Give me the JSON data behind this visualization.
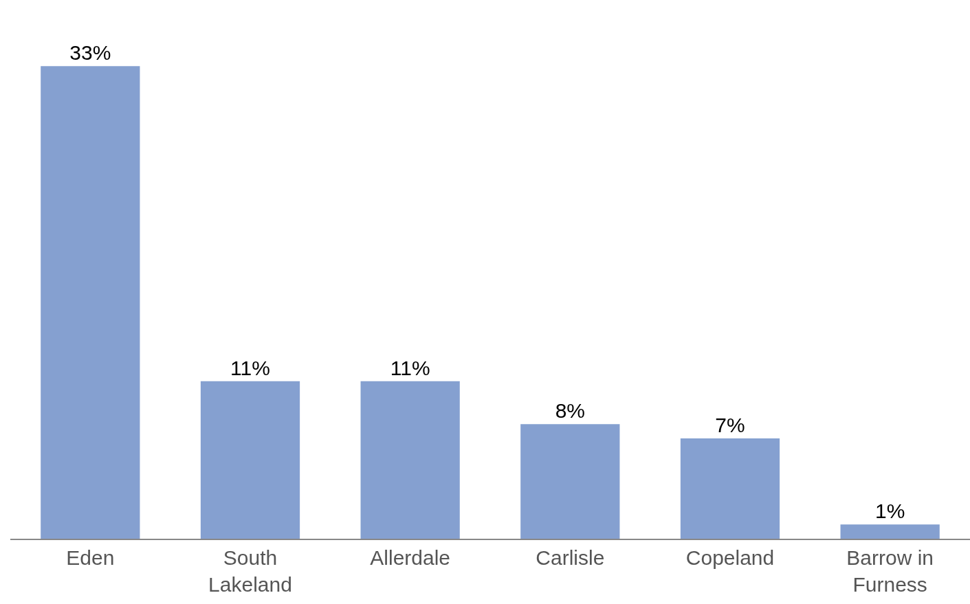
{
  "chart_data": {
    "type": "bar",
    "categories": [
      "Eden",
      "South Lakeland",
      "Allerdale",
      "Carlisle",
      "Copeland",
      "Barrow in Furness"
    ],
    "values": [
      33,
      11,
      11,
      8,
      7,
      1
    ],
    "value_labels": [
      "33%",
      "11%",
      "11%",
      "8%",
      "7%",
      "1%"
    ],
    "color": "#85a0d0"
  }
}
